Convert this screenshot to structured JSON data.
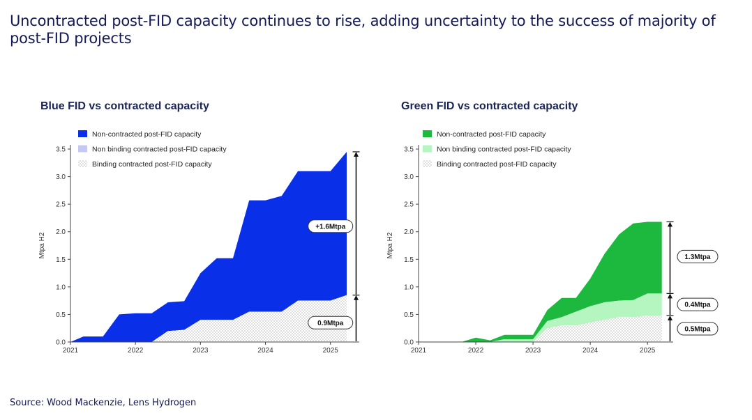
{
  "headline": "Uncontracted post-FID capacity continues to rise, adding uncertainty to the success of majority of post-FID projects",
  "source": "Source: Wood Mackenzie, Lens Hydrogen",
  "chart_data": [
    {
      "type": "area",
      "title": "Blue FID vs contracted capacity",
      "ylabel": "Mtpa H2",
      "xlabel": "",
      "xlim": [
        2021,
        2025.4
      ],
      "ylim": [
        0,
        3.5
      ],
      "yticks": [
        "0.0",
        "0.5",
        "1.0",
        "1.5",
        "2.0",
        "2.5",
        "3.0",
        "3.5"
      ],
      "xticks": [
        "2021",
        "2022",
        "2023",
        "2024",
        "2025"
      ],
      "legend_position": "top-left",
      "colors": {
        "non_contracted": "#0a2fe8",
        "non_binding": "#c4c8f2",
        "binding": "#ffffff"
      },
      "x": [
        2021.0,
        2021.2,
        2021.5,
        2021.75,
        2022.0,
        2022.25,
        2022.5,
        2022.75,
        2023.0,
        2023.25,
        2023.5,
        2023.75,
        2024.0,
        2024.25,
        2024.5,
        2024.75,
        2025.0,
        2025.25
      ],
      "series": [
        {
          "name": "Non-contracted post-FID capacity",
          "values": [
            0.0,
            0.1,
            0.1,
            0.5,
            0.52,
            0.52,
            0.72,
            0.74,
            1.25,
            1.52,
            1.52,
            2.57,
            2.57,
            2.65,
            3.1,
            3.1,
            3.1,
            3.45
          ]
        },
        {
          "name": "Non binding contracted post-FID capacity",
          "values": [
            0.0,
            0.0,
            0.0,
            0.0,
            0.0,
            0.0,
            0.0,
            0.0,
            0.0,
            0.0,
            0.0,
            0.0,
            0.0,
            0.0,
            0.0,
            0.0,
            0.0,
            0.0
          ]
        },
        {
          "name": "Binding contracted post-FID capacity",
          "values": [
            0.0,
            0.0,
            0.0,
            0.0,
            0.0,
            0.0,
            0.2,
            0.22,
            0.4,
            0.4,
            0.4,
            0.55,
            0.55,
            0.55,
            0.75,
            0.75,
            0.75,
            0.85
          ]
        }
      ],
      "annotations": [
        {
          "text": "+1.6Mtpa",
          "x": 2025.0,
          "y": 2.1
        },
        {
          "text": "0.9Mtpa",
          "x": 2025.0,
          "y": 0.35
        }
      ]
    },
    {
      "type": "area",
      "title": "Green FID vs contracted capacity",
      "ylabel": "Mtpa H2",
      "xlabel": "",
      "xlim": [
        2021,
        2025.4
      ],
      "ylim": [
        0,
        3.5
      ],
      "yticks": [
        "0.0",
        "0.5",
        "1.0",
        "1.5",
        "2.0",
        "2.5",
        "3.0",
        "3.5"
      ],
      "xticks": [
        "2021",
        "2022",
        "2023",
        "2024",
        "2025"
      ],
      "legend_position": "top-left",
      "colors": {
        "non_contracted": "#1db83e",
        "non_binding": "#b4f5c0",
        "binding": "#ffffff"
      },
      "x": [
        2021.0,
        2021.5,
        2021.75,
        2022.0,
        2022.25,
        2022.5,
        2022.75,
        2023.0,
        2023.25,
        2023.5,
        2023.75,
        2024.0,
        2024.25,
        2024.5,
        2024.75,
        2025.0,
        2025.25
      ],
      "series": [
        {
          "name": "Non-contracted post-FID capacity",
          "values": [
            0.0,
            0.0,
            0.0,
            0.08,
            0.03,
            0.13,
            0.13,
            0.13,
            0.58,
            0.8,
            0.8,
            1.15,
            1.6,
            1.95,
            2.15,
            2.18,
            2.18
          ]
        },
        {
          "name": "Non binding contracted post-FID capacity",
          "values": [
            0.0,
            0.0,
            0.0,
            0.0,
            0.0,
            0.05,
            0.05,
            0.05,
            0.38,
            0.45,
            0.55,
            0.65,
            0.72,
            0.75,
            0.76,
            0.88,
            0.88
          ]
        },
        {
          "name": "Binding contracted post-FID capacity",
          "values": [
            0.0,
            0.0,
            0.0,
            0.0,
            0.0,
            0.0,
            0.0,
            0.0,
            0.25,
            0.3,
            0.3,
            0.35,
            0.4,
            0.45,
            0.45,
            0.48,
            0.48
          ]
        }
      ],
      "annotations": [
        {
          "text": "1.3Mtpa",
          "x": 2025.0,
          "y": 1.55
        },
        {
          "text": "0.4Mtpa",
          "x": 2025.0,
          "y": 0.68
        },
        {
          "text": "0.5Mtpa",
          "x": 2025.0,
          "y": 0.24
        }
      ]
    }
  ]
}
